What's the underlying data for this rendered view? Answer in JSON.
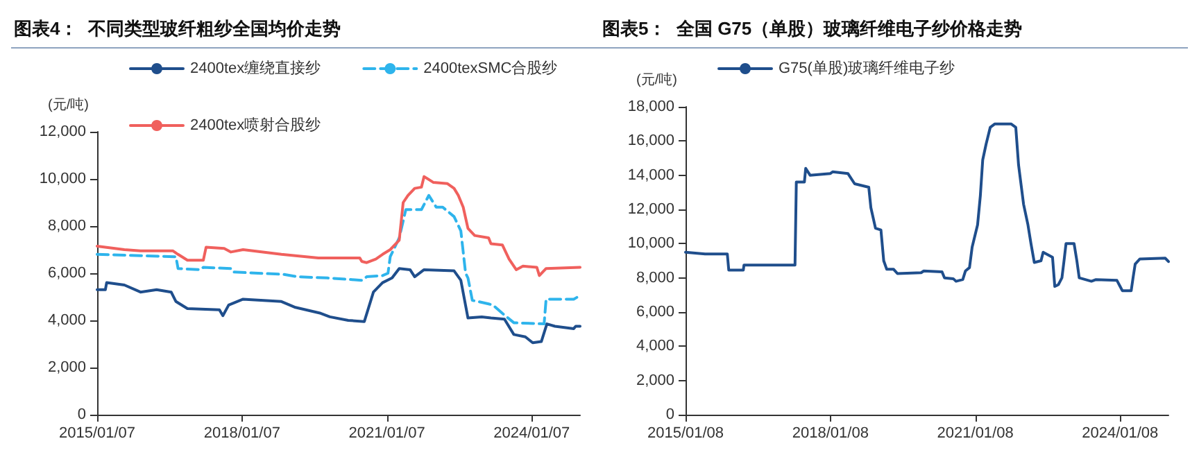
{
  "chart_data": [
    {
      "type": "line",
      "title": "图表4：  不同类型玻纤粗纱全国均价走势",
      "ylabel": "(元/吨)",
      "legend": "top",
      "grid": false,
      "marker": "none",
      "xlim": [
        "2015-01-07",
        "2025-01-07"
      ],
      "xticks": [
        {
          "value": "2015-01-07",
          "label": "2015/01/07"
        },
        {
          "value": "2018-01-07",
          "label": "2018/01/07"
        },
        {
          "value": "2021-01-07",
          "label": "2021/01/07"
        },
        {
          "value": "2024-01-07",
          "label": "2024/01/07"
        }
      ],
      "ylim": [
        0,
        12000
      ],
      "yticks": [
        0,
        {
          "value": 2000,
          "label": "2,000"
        },
        {
          "value": 4000,
          "label": "4,000"
        },
        {
          "value": 6000,
          "label": "6,000"
        },
        {
          "value": 8000,
          "label": "8,000"
        },
        {
          "value": 10000,
          "label": "10,000"
        },
        {
          "value": 12000,
          "label": "12,000"
        }
      ],
      "series": [
        {
          "name": "2400tex缠绕直接纱",
          "color": "#1f4e8c",
          "line_style": "solid",
          "x": [
            "2015-01-07",
            "2015-03-10",
            "2015-03-20",
            "2015-08-01",
            "2015-12-01",
            "2016-04-01",
            "2016-07-20",
            "2016-08-25",
            "2016-11-20",
            "2017-07-20",
            "2017-08-15",
            "2017-09-28",
            "2018-01-15",
            "2018-11-01",
            "2019-02-15",
            "2019-08-25",
            "2019-11-02",
            "2020-03-20",
            "2020-07-20",
            "2020-09-27",
            "2020-12-05",
            "2021-02-15",
            "2021-04-10",
            "2021-07-01",
            "2021-08-05",
            "2021-10-15",
            "2022-05-30",
            "2022-07-20",
            "2022-09-12",
            "2022-12-25",
            "2023-03-05",
            "2023-06-15",
            "2023-08-25",
            "2023-11-20",
            "2024-01-15",
            "2024-03-20",
            "2024-05-01",
            "2024-07-01",
            "2024-11-20",
            "2024-12-05",
            "2025-01-07"
          ],
          "values": [
            5300,
            5300,
            5600,
            5500,
            5200,
            5300,
            5200,
            4800,
            4500,
            4450,
            4200,
            4650,
            4900,
            4800,
            4550,
            4300,
            4150,
            4000,
            3950,
            5200,
            5600,
            5800,
            6200,
            6150,
            5850,
            6150,
            6100,
            5700,
            4100,
            4150,
            4100,
            4050,
            3400,
            3300,
            3050,
            3100,
            3850,
            3750,
            3650,
            3750,
            3750
          ]
        },
        {
          "name": "2400texSMC合股纱",
          "color": "#2eb4ec",
          "line_style": "dashed",
          "x": [
            "2015-01-07",
            "2016-08-25",
            "2016-09-10",
            "2017-03-01",
            "2017-03-20",
            "2017-10-15",
            "2017-11-01",
            "2018-11-20",
            "2019-03-01",
            "2019-10-15",
            "2020-07-01",
            "2020-08-07",
            "2020-12-05",
            "2021-01-15",
            "2021-02-01",
            "2021-04-10",
            "2021-05-30",
            "2021-09-25",
            "2021-11-20",
            "2022-01-15",
            "2022-03-05",
            "2022-05-30",
            "2022-07-20",
            "2022-08-25",
            "2022-09-12",
            "2022-10-15",
            "2023-02-15",
            "2023-03-20",
            "2023-05-30",
            "2023-08-25",
            "2024-04-10",
            "2024-04-25",
            "2024-11-20",
            "2025-01-07"
          ],
          "values": [
            6800,
            6700,
            6200,
            6150,
            6250,
            6200,
            6050,
            5950,
            5850,
            5800,
            5700,
            5850,
            5900,
            6000,
            6700,
            7500,
            8700,
            8700,
            9300,
            8800,
            8800,
            8400,
            7800,
            6000,
            5800,
            4850,
            4700,
            4650,
            4300,
            3900,
            3850,
            4900,
            4900,
            5050
          ]
        },
        {
          "name": "2400tex喷射合股纱",
          "color": "#f0605d",
          "line_style": "solid",
          "x": [
            "2015-01-07",
            "2015-08-01",
            "2015-12-01",
            "2016-08-01",
            "2016-09-10",
            "2016-11-20",
            "2017-03-20",
            "2017-04-10",
            "2017-08-25",
            "2017-10-15",
            "2018-01-15",
            "2018-11-01",
            "2019-08-07",
            "2020-06-15",
            "2020-07-01",
            "2020-08-07",
            "2020-10-15",
            "2020-12-05",
            "2021-02-01",
            "2021-04-10",
            "2021-05-10",
            "2021-06-15",
            "2021-08-05",
            "2021-09-25",
            "2021-10-15",
            "2021-12-25",
            "2022-04-10",
            "2022-05-30",
            "2022-07-01",
            "2022-08-07",
            "2022-09-12",
            "2022-11-02",
            "2023-02-15",
            "2023-03-05",
            "2023-05-30",
            "2023-07-20",
            "2023-09-12",
            "2023-11-02",
            "2024-02-15",
            "2024-03-05",
            "2024-04-25",
            "2025-01-07"
          ],
          "values": [
            7150,
            7000,
            6950,
            6950,
            6800,
            6550,
            6550,
            7100,
            7050,
            6900,
            7000,
            6800,
            6650,
            6650,
            6500,
            6450,
            6600,
            6800,
            7000,
            7400,
            9000,
            9300,
            9600,
            9650,
            10100,
            9850,
            9800,
            9600,
            9300,
            8800,
            7900,
            7600,
            7500,
            7250,
            7200,
            6600,
            6150,
            6300,
            6250,
            5900,
            6200,
            6250
          ]
        }
      ]
    },
    {
      "type": "line",
      "title": "图表5：  全国 G75（单股）玻璃纤维电子纱价格走势",
      "ylabel": "(元/吨)",
      "legend": "top",
      "grid": false,
      "marker": "none",
      "xlim": [
        "2015-01-08",
        "2025-01-08"
      ],
      "xticks": [
        {
          "value": "2015-01-08",
          "label": "2015/01/08"
        },
        {
          "value": "2018-01-08",
          "label": "2018/01/08"
        },
        {
          "value": "2021-01-08",
          "label": "2021/01/08"
        },
        {
          "value": "2024-01-08",
          "label": "2024/01/08"
        }
      ],
      "ylim": [
        0,
        18000
      ],
      "yticks": [
        0,
        {
          "value": 2000,
          "label": "2,000"
        },
        {
          "value": 4000,
          "label": "4,000"
        },
        {
          "value": 6000,
          "label": "6,000"
        },
        {
          "value": 8000,
          "label": "8,000"
        },
        {
          "value": 10000,
          "label": "10,000"
        },
        {
          "value": 12000,
          "label": "12,000"
        },
        {
          "value": 14000,
          "label": "14,000"
        },
        {
          "value": 16000,
          "label": "16,000"
        },
        {
          "value": 18000,
          "label": "18,000"
        }
      ],
      "series": [
        {
          "name": "G75(单股)玻璃纤维电子纱",
          "color": "#1f4e8c",
          "line_style": "solid",
          "x": [
            "2015-01-08",
            "2015-06-05",
            "2015-11-20",
            "2015-12-01",
            "2016-03-20",
            "2016-03-25",
            "2017-04-15",
            "2017-04-25",
            "2017-06-25",
            "2017-07-05",
            "2017-08-07",
            "2018-01-08",
            "2018-01-25",
            "2018-05-20",
            "2018-07-10",
            "2018-10-25",
            "2018-11-10",
            "2018-12-15",
            "2019-01-25",
            "2019-02-15",
            "2019-03-10",
            "2019-05-01",
            "2019-05-30",
            "2019-11-25",
            "2019-12-15",
            "2020-05-01",
            "2020-05-20",
            "2020-07-25",
            "2020-08-15",
            "2020-10-05",
            "2020-10-25",
            "2020-11-25",
            "2020-12-15",
            "2021-01-25",
            "2021-02-15",
            "2021-03-05",
            "2021-03-30",
            "2021-05-01",
            "2021-06-05",
            "2021-10-05",
            "2021-11-10",
            "2021-12-01",
            "2022-01-08",
            "2022-02-10",
            "2022-03-05",
            "2022-03-30",
            "2022-05-20",
            "2022-06-05",
            "2022-08-15",
            "2022-09-01",
            "2022-09-28",
            "2022-10-25",
            "2022-11-10",
            "2022-11-25",
            "2023-01-25",
            "2023-02-15",
            "2023-03-05",
            "2023-06-05",
            "2023-07-10",
            "2023-12-15",
            "2024-01-08",
            "2024-01-25",
            "2024-04-01",
            "2024-04-15",
            "2024-05-01",
            "2024-06-05",
            "2024-12-15",
            "2025-01-08"
          ],
          "values": [
            9500,
            9400,
            9400,
            8450,
            8450,
            8750,
            8750,
            13600,
            13600,
            14400,
            14000,
            14100,
            14200,
            14100,
            13500,
            13300,
            12100,
            10900,
            10800,
            9000,
            8500,
            8500,
            8250,
            8300,
            8400,
            8350,
            8000,
            7950,
            7800,
            7900,
            8400,
            8600,
            9800,
            11100,
            12800,
            14900,
            15800,
            16800,
            17000,
            17000,
            16800,
            14600,
            12300,
            11100,
            10000,
            8900,
            9000,
            9500,
            9200,
            7500,
            7600,
            8000,
            9000,
            10000,
            10000,
            9000,
            8000,
            7800,
            7900,
            7850,
            7500,
            7250,
            7250,
            8000,
            8800,
            9100,
            9150,
            8950
          ]
        }
      ]
    }
  ]
}
